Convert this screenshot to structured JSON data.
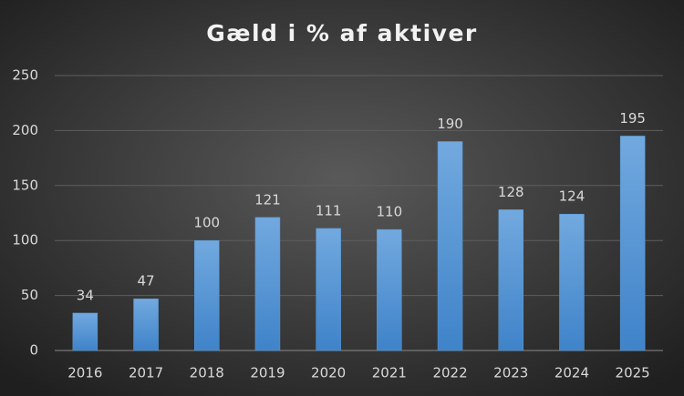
{
  "chart_data": {
    "type": "bar",
    "title": "Gæld i % af aktiver",
    "categories": [
      "2016",
      "2017",
      "2018",
      "2019",
      "2020",
      "2021",
      "2022",
      "2023",
      "2024",
      "2025"
    ],
    "values": [
      34,
      47,
      100,
      121,
      111,
      110,
      190,
      128,
      124,
      195
    ],
    "color": "#5b9bd5",
    "ylim": [
      0,
      250
    ],
    "yticks": [
      0,
      50,
      100,
      150,
      200,
      250
    ],
    "grid": true
  }
}
